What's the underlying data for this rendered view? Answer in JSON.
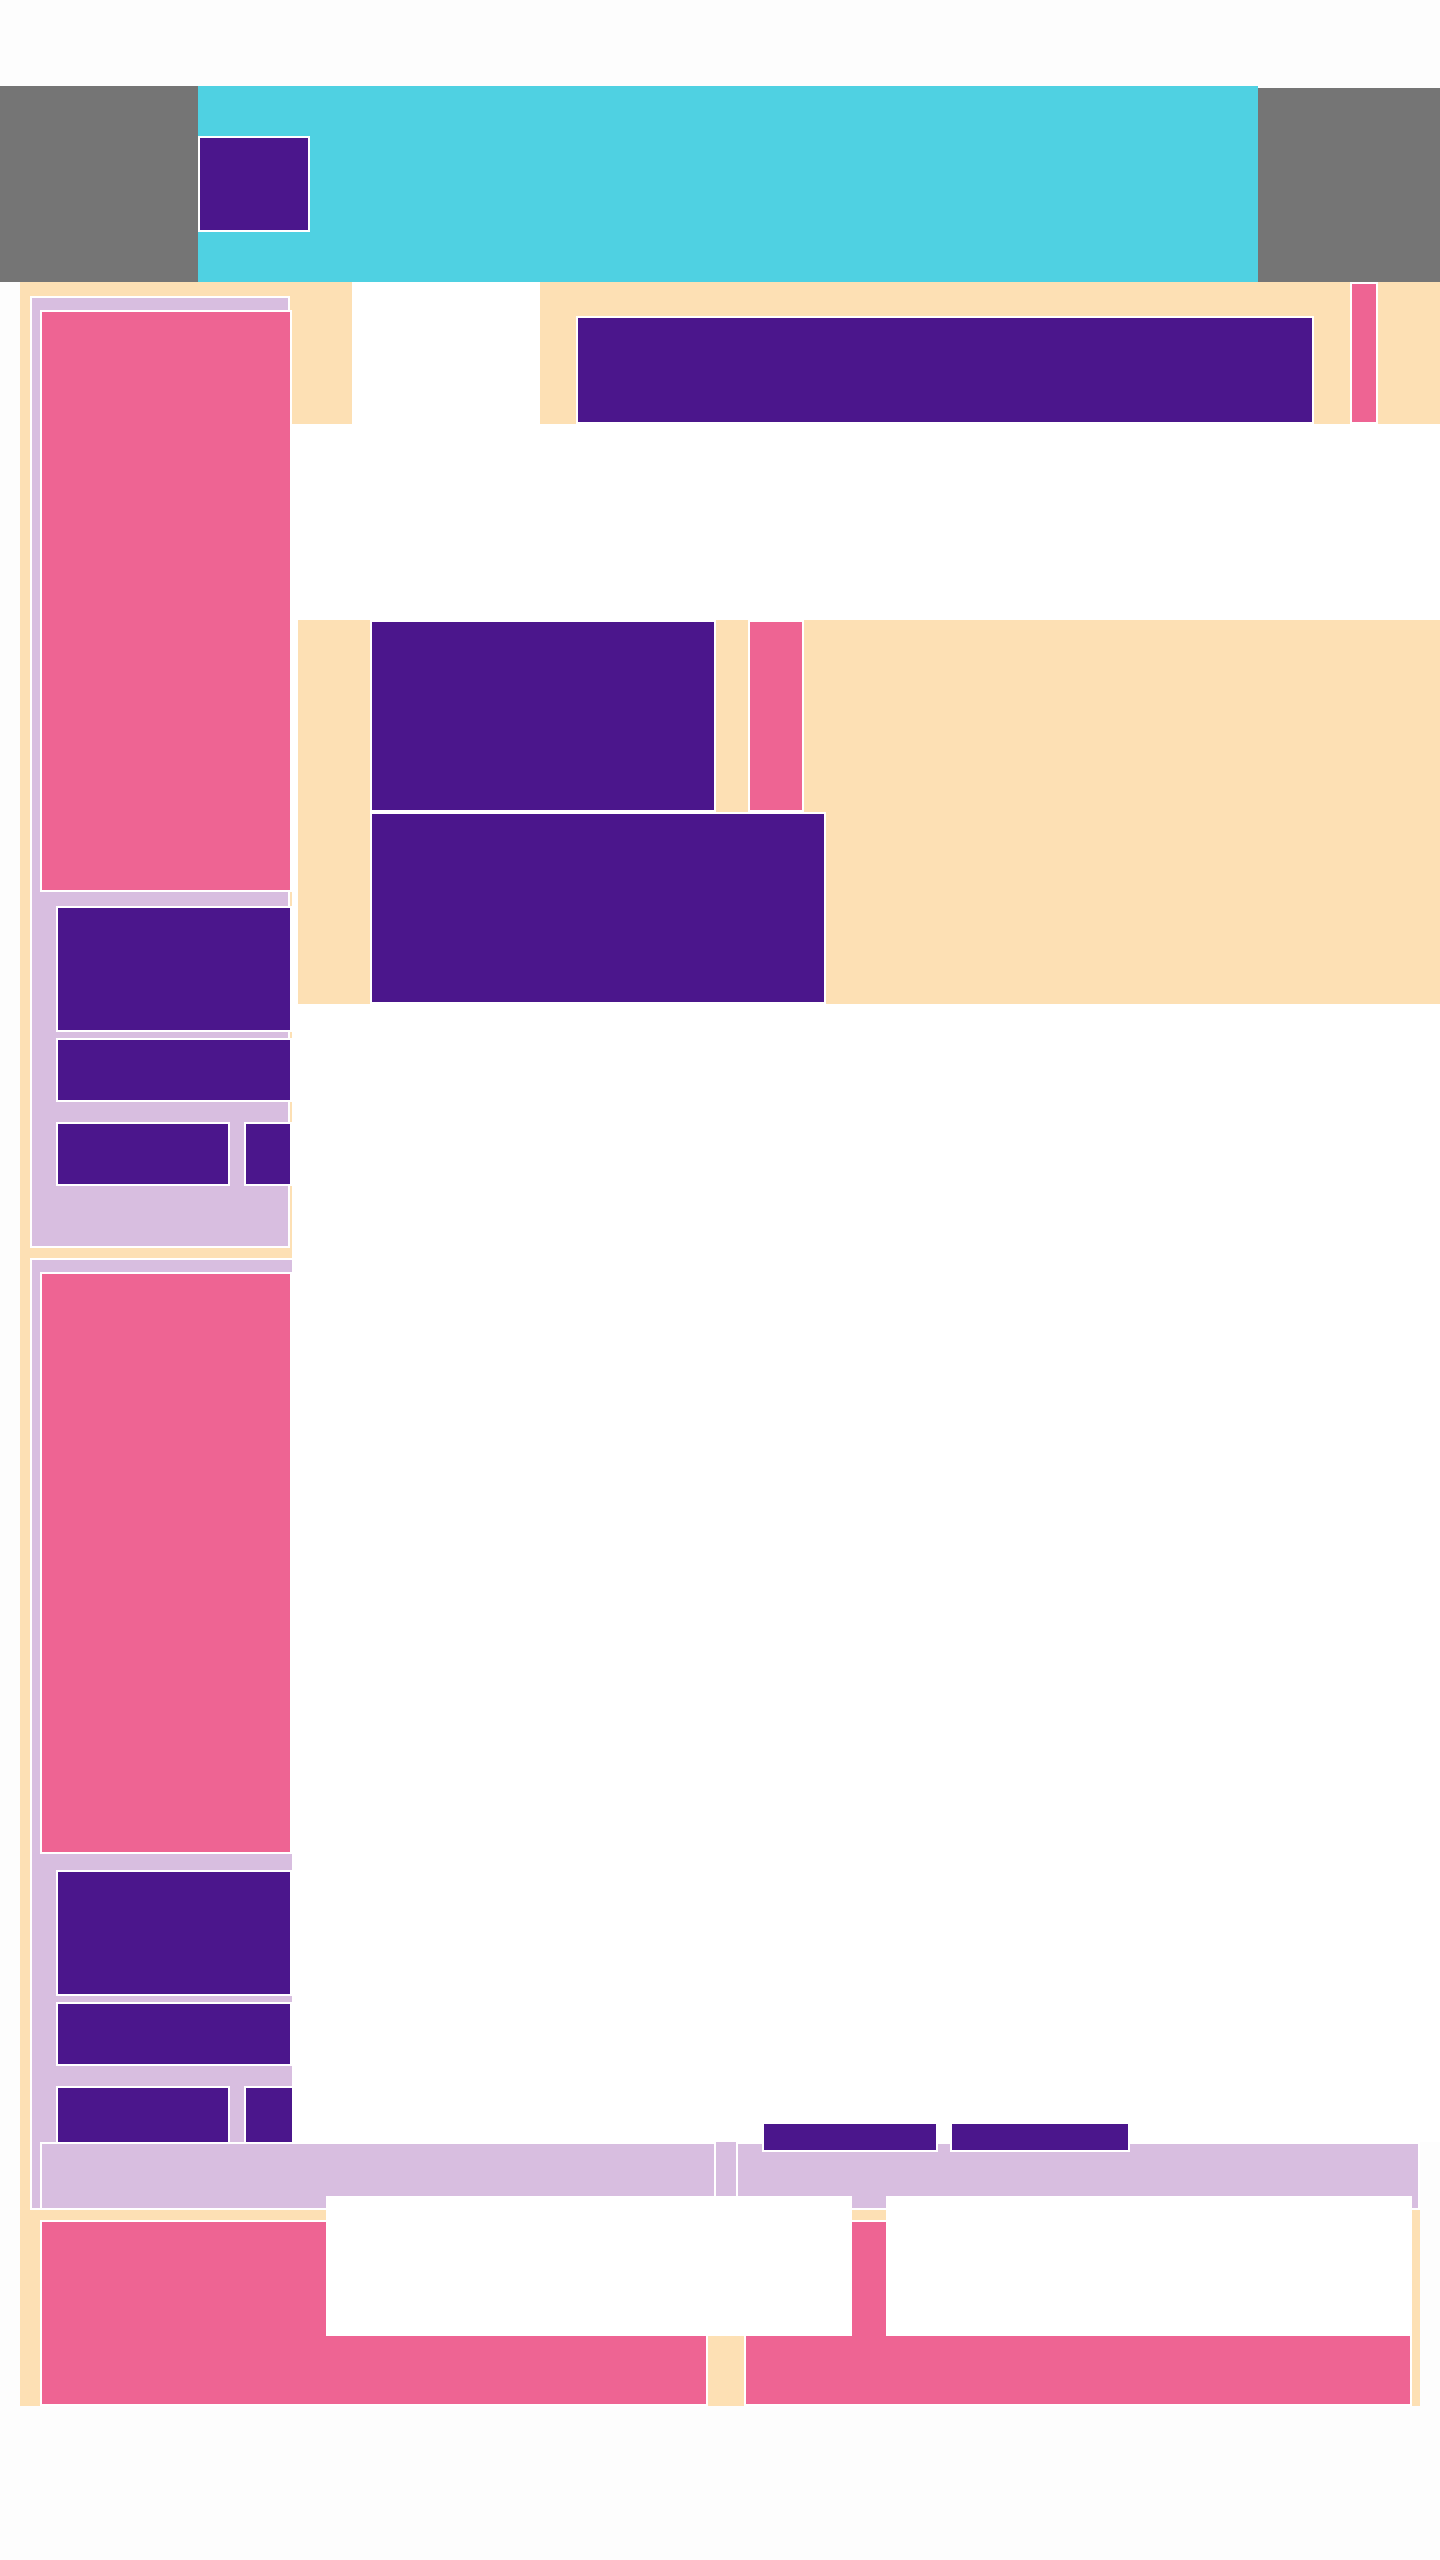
{
  "app": {
    "title": "",
    "colors": {
      "header_bg": "#4FD1E2",
      "side_gray": "#757575",
      "purple": "#4B168C",
      "pink": "#EE6493",
      "peach": "#FDE0B4",
      "lavender": "#D8BEE0",
      "white": "#FFFFFF"
    }
  },
  "header": {
    "logo_text": "",
    "left_panel_label": "",
    "right_panel_label": ""
  },
  "top_bar": {
    "search_placeholder": "",
    "action_label": ""
  },
  "rows": [
    {
      "title": "",
      "badge": ""
    },
    {
      "title": ""
    }
  ],
  "cards": [
    {
      "media_label": "",
      "title": "",
      "subtitle": "",
      "chip_1": "",
      "chip_2": ""
    },
    {
      "media_label": "",
      "title": "",
      "subtitle": "",
      "chip_1": "",
      "chip_2": ""
    },
    {
      "media_label": ""
    },
    {
      "media_label": ""
    }
  ],
  "bottom": {
    "chip_1": "",
    "chip_2": "",
    "popup_1": "",
    "popup_2": ""
  }
}
